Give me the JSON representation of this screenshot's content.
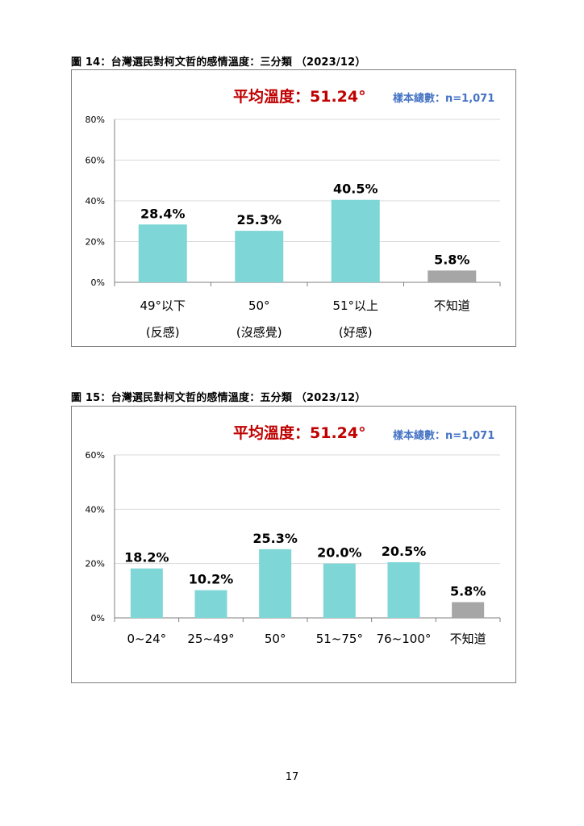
{
  "page_number": "17",
  "colors": {
    "bar": "#7fd6d6",
    "unknown_bar": "#a6a6a6",
    "grid": "#d9d9d9",
    "axis": "#7f7f7f",
    "title_red": "#c00000",
    "note_blue": "#4472c4"
  },
  "figure14": {
    "caption": "圖 14：台灣選民對柯文哲的感情溫度：三分類 （2023/12）",
    "avg_title": "平均溫度：51.24°",
    "sample_note": "樣本總數：n=1,071"
  },
  "figure15": {
    "caption": "圖 15：台灣選民對柯文哲的感情溫度：五分類 （2023/12）",
    "avg_title": "平均溫度：51.24°",
    "sample_note": "樣本總數：n=1,071"
  },
  "chart_data": [
    {
      "type": "bar",
      "categories": [
        "49°以下",
        "50°",
        "51°以上",
        "不知道"
      ],
      "category_sublabels": [
        "(反感)",
        "(沒感覺)",
        "(好感)",
        ""
      ],
      "values": [
        28.4,
        25.3,
        40.5,
        5.8
      ],
      "value_labels": [
        "28.4%",
        "25.3%",
        "40.5%",
        "5.8%"
      ],
      "bar_colors": [
        "#7fd6d6",
        "#7fd6d6",
        "#7fd6d6",
        "#a6a6a6"
      ],
      "ylim": [
        0,
        80
      ],
      "yticks": [
        0,
        20,
        40,
        60,
        80
      ],
      "ytick_labels": [
        "0%",
        "20%",
        "40%",
        "60%",
        "80%"
      ],
      "grid": true
    },
    {
      "type": "bar",
      "categories": [
        "0~24°",
        "25~49°",
        "50°",
        "51~75°",
        "76~100°",
        "不知道"
      ],
      "values": [
        18.2,
        10.2,
        25.3,
        20.0,
        20.5,
        5.8
      ],
      "value_labels": [
        "18.2%",
        "10.2%",
        "25.3%",
        "20.0%",
        "20.5%",
        "5.8%"
      ],
      "bar_colors": [
        "#7fd6d6",
        "#7fd6d6",
        "#7fd6d6",
        "#7fd6d6",
        "#7fd6d6",
        "#a6a6a6"
      ],
      "ylim": [
        0,
        60
      ],
      "yticks": [
        0,
        20,
        40,
        60
      ],
      "ytick_labels": [
        "0%",
        "20%",
        "40%",
        "60%"
      ],
      "grid": true
    }
  ]
}
